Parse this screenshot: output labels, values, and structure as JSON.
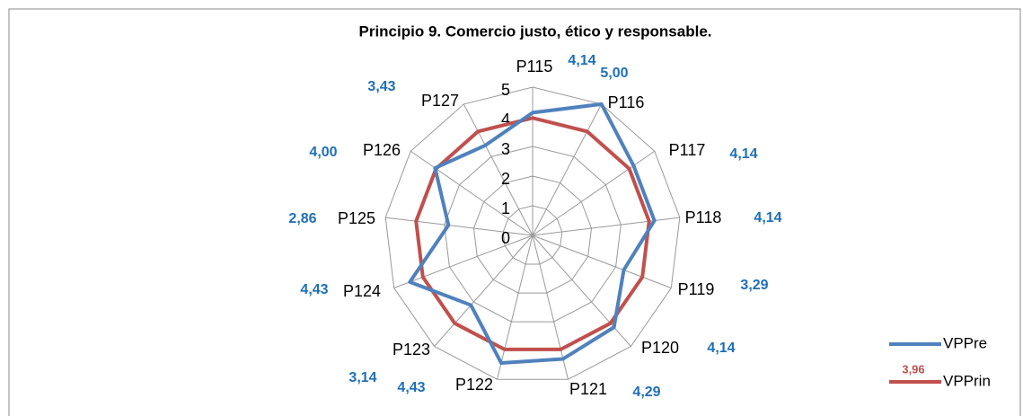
{
  "chart_data": {
    "type": "radar",
    "title": "Principio 9. Comercio justo, ético y responsable.",
    "categories": [
      "P115",
      "P116",
      "P117",
      "P118",
      "P119",
      "P120",
      "P121",
      "P122",
      "P123",
      "P124",
      "P125",
      "P126",
      "P127"
    ],
    "series": [
      {
        "name": "VPPre",
        "color": "#4f81bd",
        "values": [
          4.14,
          5.0,
          4.14,
          4.14,
          3.29,
          4.14,
          4.29,
          4.43,
          3.14,
          4.43,
          2.86,
          4.0,
          3.43
        ],
        "value_labels": [
          "4,14",
          "5,00",
          "4,14",
          "4,14",
          "3,29",
          "4,14",
          "4,29",
          "4,43",
          "3,14",
          "4,43",
          "2,86",
          "4,00",
          "3,43"
        ]
      },
      {
        "name": "VPPrin",
        "color": "#c0504d",
        "values": [
          3.96,
          3.96,
          3.96,
          3.96,
          3.96,
          3.96,
          3.96,
          3.96,
          3.96,
          3.96,
          3.96,
          3.96,
          3.96
        ],
        "value_labels": [
          "3,96",
          null,
          null,
          null,
          null,
          null,
          null,
          null,
          null,
          null,
          null,
          null,
          null
        ]
      }
    ],
    "ylim": [
      0,
      5
    ],
    "yticks": [
      0,
      1,
      2,
      3,
      4,
      5
    ],
    "grid": true,
    "legend": "right"
  }
}
